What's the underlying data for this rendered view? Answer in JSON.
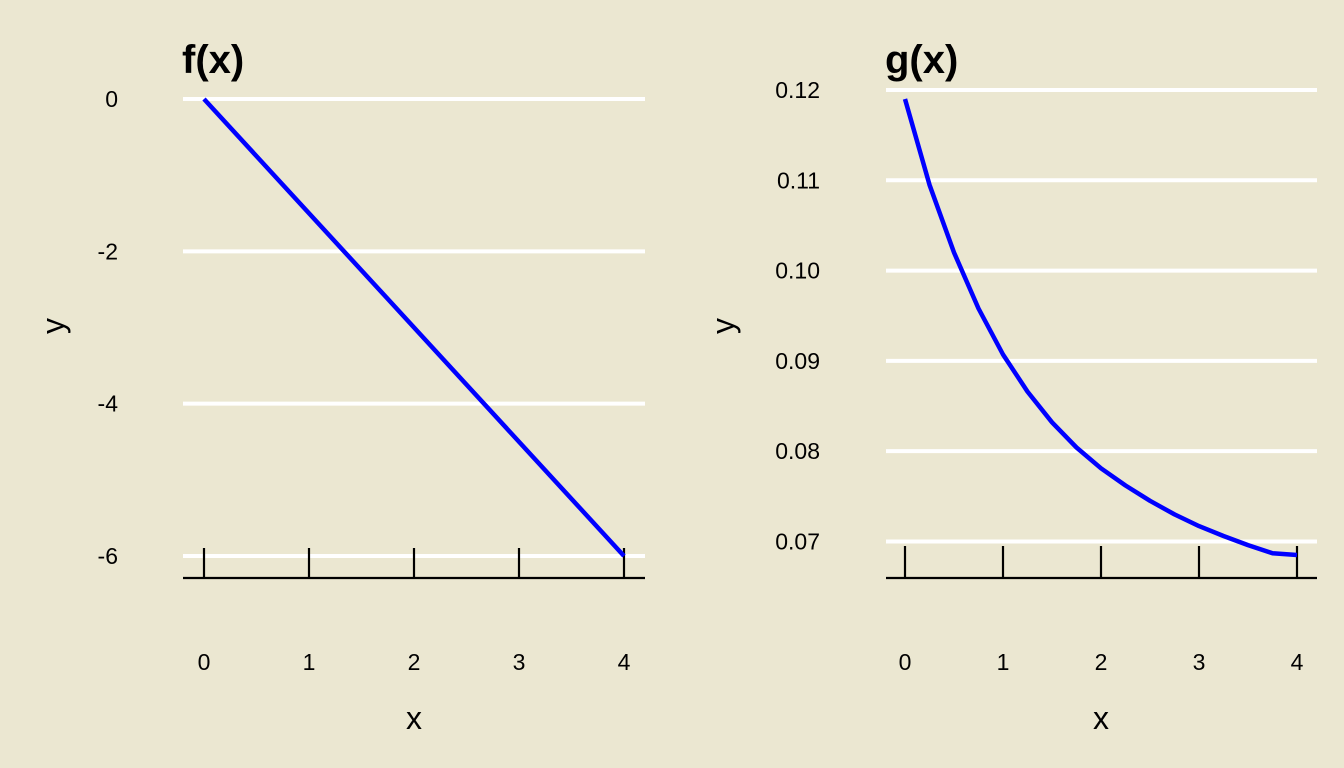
{
  "chart_data": [
    {
      "type": "line",
      "title": "f(x)",
      "xlabel": "x",
      "ylabel": "y",
      "xlim": [
        0,
        4
      ],
      "ylim": [
        -6,
        0
      ],
      "x_ticks": [
        0,
        1,
        2,
        3,
        4
      ],
      "x_tick_labels": [
        "0",
        "1",
        "2",
        "3",
        "4"
      ],
      "y_ticks": [
        0,
        -2,
        -4,
        -6
      ],
      "y_tick_labels": [
        "0",
        "-2",
        "-4",
        "-6"
      ],
      "grid": "horizontal",
      "series": [
        {
          "color": "#0000ff",
          "x": [
            0,
            4
          ],
          "y": [
            0,
            -6
          ]
        }
      ]
    },
    {
      "type": "line",
      "title": "g(x)",
      "xlabel": "x",
      "ylabel": "y",
      "xlim": [
        0,
        4
      ],
      "ylim": [
        0.0685,
        0.119
      ],
      "x_ticks": [
        0,
        1,
        2,
        3,
        4
      ],
      "x_tick_labels": [
        "0",
        "1",
        "2",
        "3",
        "4"
      ],
      "y_ticks": [
        0.12,
        0.11,
        0.1,
        0.09,
        0.08,
        0.07
      ],
      "y_tick_labels": [
        "0.12",
        "0.11",
        "0.10",
        "0.09",
        "0.08",
        "0.07"
      ],
      "grid": "horizontal",
      "series": [
        {
          "color": "#0000ff",
          "x": [
            0,
            0.25,
            0.5,
            0.75,
            1,
            1.25,
            1.5,
            1.75,
            2,
            2.25,
            2.5,
            2.75,
            3,
            3.25,
            3.5,
            3.75,
            4
          ],
          "y": [
            0.119,
            0.1095,
            0.102,
            0.0958,
            0.0907,
            0.0866,
            0.0832,
            0.0804,
            0.0781,
            0.0762,
            0.0745,
            0.073,
            0.0717,
            0.0706,
            0.0696,
            0.0687,
            0.0685
          ]
        }
      ]
    }
  ]
}
